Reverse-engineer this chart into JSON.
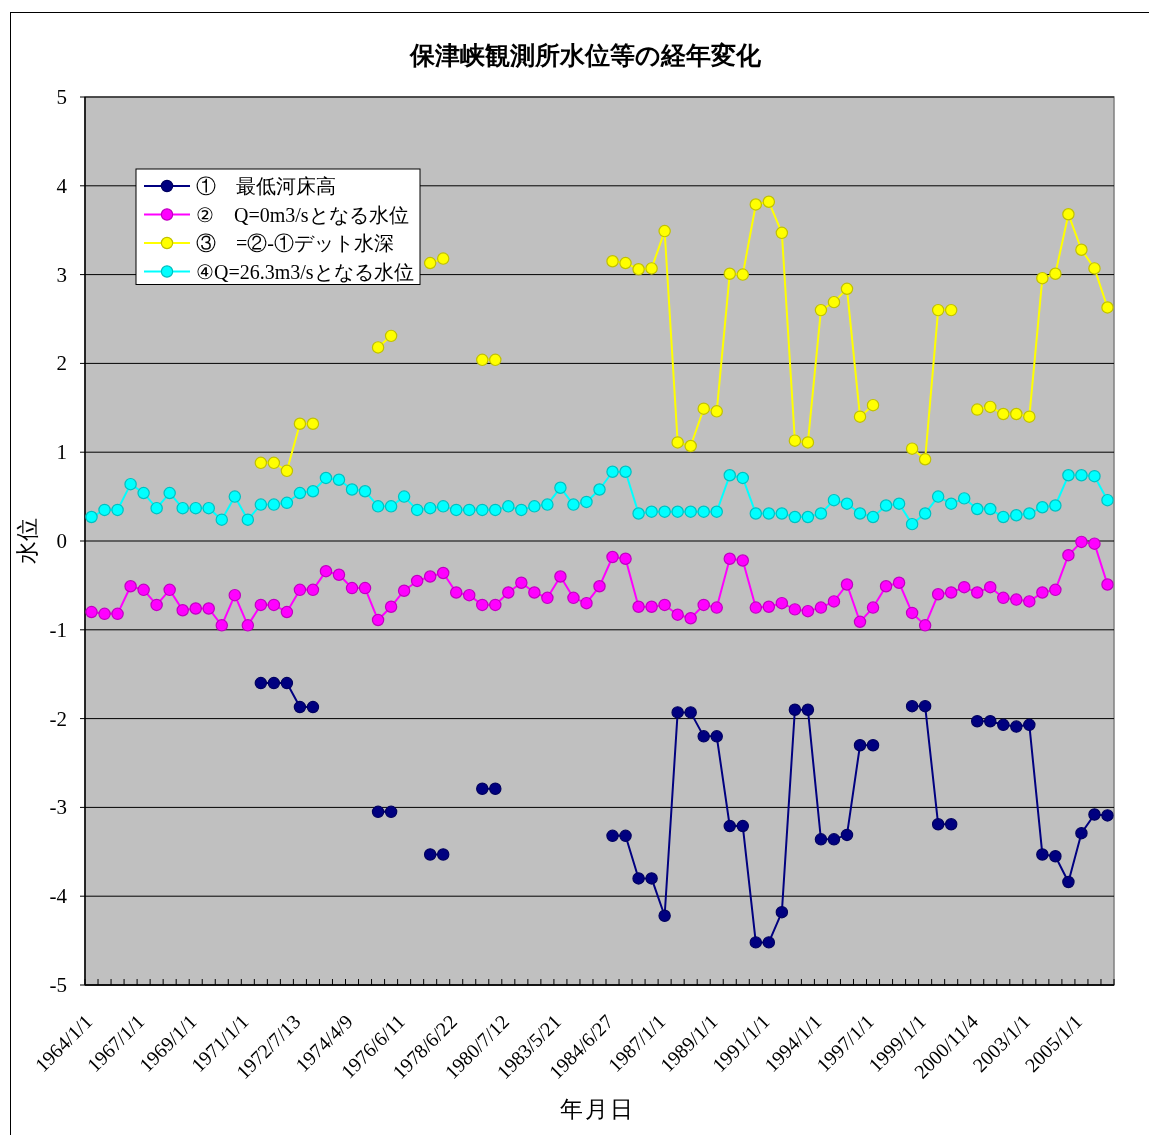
{
  "chart_data": {
    "type": "line",
    "title": "保津峡観測所水位等の経年変化",
    "xlabel": "年月日",
    "ylabel": "水位",
    "categories": [
      "1964/1/1",
      null,
      null,
      null,
      "1967/1/1",
      null,
      null,
      null,
      "1969/1/1",
      null,
      null,
      null,
      "1971/1/1",
      null,
      null,
      null,
      "1972/7/13",
      null,
      null,
      null,
      "1974/4/9",
      null,
      null,
      null,
      "1976/6/11",
      null,
      null,
      null,
      "1978/6/22",
      null,
      null,
      null,
      "1980/7/12",
      null,
      null,
      null,
      "1983/5/21",
      null,
      null,
      null,
      "1984/6/27",
      null,
      null,
      null,
      "1987/1/1",
      null,
      null,
      null,
      "1989/1/1",
      null,
      null,
      null,
      "1991/1/1",
      null,
      null,
      null,
      "1994/1/1",
      null,
      null,
      null,
      "1997/1/1",
      null,
      null,
      null,
      "1999/1/1",
      null,
      null,
      null,
      "2000/11/4",
      null,
      null,
      null,
      "2003/1/1",
      null,
      null,
      null,
      "2005/1/1",
      null,
      null
    ],
    "series": [
      {
        "name": "①　最低河床高",
        "color": "#000080",
        "values": [
          null,
          null,
          null,
          null,
          null,
          null,
          null,
          null,
          null,
          null,
          null,
          null,
          null,
          -1.6,
          -1.6,
          -1.6,
          -1.87,
          -1.87,
          null,
          null,
          null,
          null,
          -3.05,
          -3.05,
          null,
          null,
          -3.53,
          -3.53,
          null,
          null,
          -2.79,
          -2.79,
          null,
          null,
          null,
          null,
          null,
          null,
          null,
          null,
          -3.32,
          -3.32,
          -3.8,
          -3.8,
          -4.22,
          -1.93,
          -1.93,
          -2.2,
          -2.2,
          -3.21,
          -3.21,
          -4.52,
          -4.52,
          -4.18,
          -1.9,
          -1.9,
          -3.36,
          -3.36,
          -3.31,
          -2.3,
          -2.3,
          null,
          null,
          -1.86,
          -1.86,
          -3.19,
          -3.19,
          null,
          -2.03,
          -2.03,
          -2.07,
          -2.09,
          -2.07,
          -3.53,
          -3.55,
          -3.84,
          -3.29,
          -3.08,
          -3.09
        ]
      },
      {
        "name": "②　Q=0m3/sとなる水位",
        "color": "#ff00ff",
        "values": [
          -0.8,
          -0.82,
          -0.82,
          -0.51,
          -0.55,
          -0.72,
          -0.55,
          -0.78,
          -0.76,
          -0.76,
          -0.95,
          -0.61,
          -0.95,
          -0.72,
          -0.72,
          -0.8,
          -0.55,
          -0.55,
          -0.34,
          -0.38,
          -0.53,
          -0.53,
          -0.89,
          -0.74,
          -0.56,
          -0.45,
          -0.4,
          -0.36,
          -0.58,
          -0.61,
          -0.72,
          -0.72,
          -0.58,
          -0.47,
          -0.58,
          -0.64,
          -0.4,
          -0.64,
          -0.7,
          -0.51,
          -0.18,
          -0.2,
          -0.74,
          -0.74,
          -0.72,
          -0.83,
          -0.87,
          -0.72,
          -0.75,
          -0.2,
          -0.22,
          -0.75,
          -0.74,
          -0.7,
          -0.77,
          -0.79,
          -0.75,
          -0.68,
          -0.49,
          -0.91,
          -0.75,
          -0.51,
          -0.47,
          -0.81,
          -0.95,
          -0.6,
          -0.58,
          -0.52,
          -0.58,
          -0.52,
          -0.64,
          -0.66,
          -0.68,
          -0.58,
          -0.55,
          -0.16,
          -0.01,
          -0.03,
          -0.49
        ]
      },
      {
        "name": "③　=②-①デット水深",
        "color": "#ffff00",
        "values": [
          null,
          null,
          null,
          null,
          null,
          null,
          null,
          null,
          null,
          null,
          null,
          null,
          null,
          0.88,
          0.88,
          0.79,
          1.32,
          1.32,
          null,
          null,
          null,
          null,
          2.18,
          2.31,
          null,
          null,
          3.13,
          3.18,
          null,
          null,
          2.04,
          2.04,
          null,
          null,
          null,
          null,
          null,
          null,
          null,
          null,
          3.15,
          3.13,
          3.06,
          3.07,
          3.49,
          1.11,
          1.07,
          1.49,
          1.46,
          3.01,
          3.0,
          3.79,
          3.82,
          3.47,
          1.13,
          1.11,
          2.6,
          2.69,
          2.84,
          1.4,
          1.53,
          null,
          null,
          1.04,
          0.92,
          2.6,
          2.6,
          null,
          1.48,
          1.51,
          1.43,
          1.43,
          1.4,
          2.96,
          3.01,
          3.68,
          3.28,
          3.07,
          2.63
        ]
      },
      {
        "name": "④Q=26.3m3/sとなる水位",
        "color": "#00ffff",
        "values": [
          0.27,
          0.35,
          0.35,
          0.64,
          0.54,
          0.37,
          0.54,
          0.37,
          0.37,
          0.37,
          0.24,
          0.5,
          0.24,
          0.41,
          0.41,
          0.43,
          0.54,
          0.56,
          0.71,
          0.69,
          0.58,
          0.56,
          0.39,
          0.39,
          0.5,
          0.35,
          0.37,
          0.39,
          0.35,
          0.35,
          0.35,
          0.35,
          0.39,
          0.35,
          0.39,
          0.41,
          0.6,
          0.41,
          0.44,
          0.58,
          0.78,
          0.78,
          0.31,
          0.33,
          0.33,
          0.33,
          0.33,
          0.33,
          0.33,
          0.74,
          0.71,
          0.31,
          0.31,
          0.31,
          0.27,
          0.27,
          0.31,
          0.46,
          0.42,
          0.31,
          0.27,
          0.4,
          0.42,
          0.19,
          0.31,
          0.5,
          0.42,
          0.48,
          0.36,
          0.36,
          0.27,
          0.29,
          0.31,
          0.38,
          0.4,
          0.74,
          0.74,
          0.73,
          0.46
        ]
      }
    ],
    "ylim": [
      -5,
      5
    ],
    "yticks": [
      -5,
      -4,
      -3,
      -2,
      -1,
      0,
      1,
      2,
      3,
      4,
      5
    ],
    "grid": "y",
    "legend": "top left",
    "marker": "circle"
  }
}
